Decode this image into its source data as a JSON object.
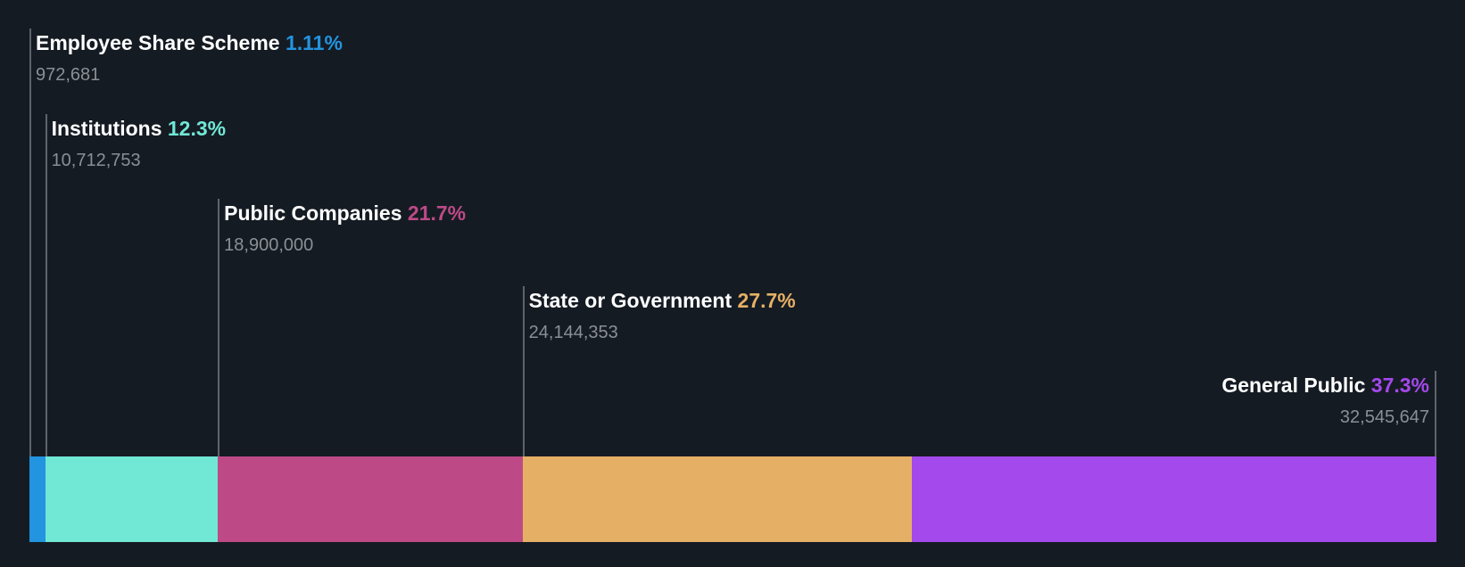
{
  "chart_data": {
    "type": "bar",
    "orientation": "stacked-horizontal",
    "categories": [
      "Employee Share Scheme",
      "Institutions",
      "Public Companies",
      "State or Government",
      "General Public"
    ],
    "series": [
      {
        "name": "Ownership share",
        "values": [
          1.11,
          12.3,
          21.7,
          27.7,
          37.3
        ]
      }
    ],
    "percent_labels": [
      "1.11%",
      "12.3%",
      "21.7%",
      "27.7%",
      "37.3%"
    ],
    "shares": [
      972681,
      10712753,
      18900000,
      24144353,
      32545647
    ],
    "share_labels": [
      "972,681",
      "10,712,753",
      "18,900,000",
      "24,144,353",
      "32,545,647"
    ],
    "colors": [
      "#2394df",
      "#71e7d6",
      "#bd4a87",
      "#e5b065",
      "#a449ec"
    ],
    "title": "",
    "xlabel": "",
    "ylabel": "",
    "grid": false,
    "legend": "none"
  }
}
